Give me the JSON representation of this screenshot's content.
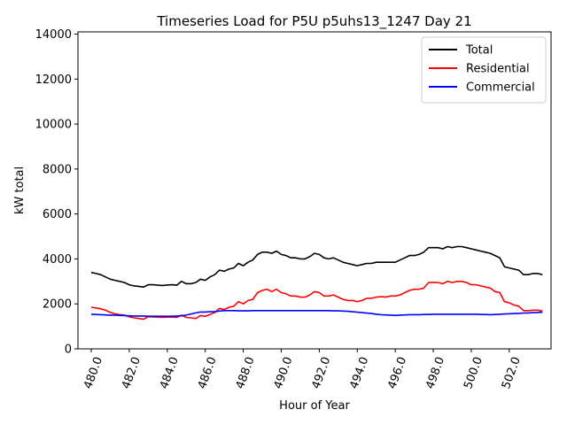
{
  "chart_data": {
    "type": "line",
    "title": "Timeseries Load for P5U p5uhs13_1247  Day 21",
    "xlabel": "Hour of Year",
    "ylabel": "kW total",
    "xlim": [
      479.3,
      504.2
    ],
    "ylim": [
      0,
      14100
    ],
    "x_ticks": [
      480,
      482,
      484,
      486,
      488,
      490,
      492,
      494,
      496,
      498,
      500,
      502
    ],
    "x_tick_labels": [
      "480.0",
      "482.0",
      "484.0",
      "486.0",
      "488.0",
      "490.0",
      "492.0",
      "494.0",
      "496.0",
      "498.0",
      "500.0",
      "502.0"
    ],
    "y_ticks": [
      0,
      2000,
      4000,
      6000,
      8000,
      10000,
      12000,
      14000
    ],
    "y_tick_labels": [
      "0",
      "2000",
      "4000",
      "6000",
      "8000",
      "10000",
      "12000",
      "14000"
    ],
    "legend_position": "top-right",
    "x": [
      480.0,
      480.25,
      480.5,
      480.75,
      481.0,
      481.25,
      481.5,
      481.75,
      482.0,
      482.25,
      482.5,
      482.75,
      483.0,
      483.25,
      483.5,
      483.75,
      484.0,
      484.25,
      484.5,
      484.75,
      485.0,
      485.25,
      485.5,
      485.75,
      486.0,
      486.25,
      486.5,
      486.75,
      487.0,
      487.25,
      487.5,
      487.75,
      488.0,
      488.25,
      488.5,
      488.75,
      489.0,
      489.25,
      489.5,
      489.75,
      490.0,
      490.25,
      490.5,
      490.75,
      491.0,
      491.25,
      491.5,
      491.75,
      492.0,
      492.25,
      492.5,
      492.75,
      493.0,
      493.25,
      493.5,
      493.75,
      494.0,
      494.25,
      494.5,
      494.75,
      495.0,
      495.25,
      495.5,
      495.75,
      496.0,
      496.25,
      496.5,
      496.75,
      497.0,
      497.25,
      497.5,
      497.75,
      498.0,
      498.25,
      498.5,
      498.75,
      499.0,
      499.25,
      499.5,
      499.75,
      500.0,
      500.25,
      500.5,
      500.75,
      501.0,
      501.25,
      501.5,
      501.75,
      502.0,
      502.25,
      502.5,
      502.75,
      503.0,
      503.25,
      503.5,
      503.75
    ],
    "series": [
      {
        "name": "Total",
        "color": "#000000",
        "values": [
          3400,
          3350,
          3300,
          3200,
          3100,
          3050,
          3000,
          2950,
          2850,
          2800,
          2780,
          2750,
          2850,
          2850,
          2830,
          2820,
          2840,
          2850,
          2830,
          3000,
          2900,
          2900,
          2950,
          3100,
          3050,
          3200,
          3300,
          3500,
          3450,
          3550,
          3600,
          3800,
          3700,
          3850,
          3950,
          4200,
          4300,
          4300,
          4250,
          4350,
          4200,
          4150,
          4050,
          4050,
          4000,
          4000,
          4100,
          4250,
          4200,
          4050,
          4000,
          4050,
          3950,
          3850,
          3800,
          3750,
          3700,
          3750,
          3800,
          3800,
          3850,
          3850,
          3850,
          3850,
          3850,
          3950,
          4050,
          4150,
          4150,
          4200,
          4300,
          4500,
          4500,
          4500,
          4450,
          4550,
          4500,
          4550,
          4550,
          4500,
          4450,
          4400,
          4350,
          4300,
          4250,
          4150,
          4050,
          3650,
          3600,
          3550,
          3500,
          3300,
          3300,
          3350,
          3350,
          3300
        ]
      },
      {
        "name": "Residential",
        "color": "#ff0000",
        "values": [
          1850,
          1820,
          1780,
          1720,
          1620,
          1560,
          1520,
          1500,
          1420,
          1380,
          1350,
          1320,
          1430,
          1420,
          1410,
          1400,
          1410,
          1410,
          1400,
          1500,
          1400,
          1380,
          1350,
          1480,
          1450,
          1530,
          1620,
          1800,
          1750,
          1850,
          1900,
          2100,
          2000,
          2150,
          2200,
          2500,
          2600,
          2650,
          2550,
          2650,
          2500,
          2450,
          2350,
          2350,
          2300,
          2300,
          2400,
          2550,
          2500,
          2350,
          2350,
          2400,
          2300,
          2200,
          2150,
          2150,
          2100,
          2150,
          2250,
          2250,
          2300,
          2320,
          2300,
          2350,
          2350,
          2400,
          2500,
          2600,
          2650,
          2650,
          2700,
          2950,
          2950,
          2950,
          2900,
          3000,
          2950,
          3000,
          3000,
          2950,
          2850,
          2850,
          2800,
          2750,
          2700,
          2550,
          2500,
          2100,
          2050,
          1950,
          1900,
          1700,
          1700,
          1720,
          1720,
          1680
        ]
      },
      {
        "name": "Commercial",
        "color": "#0000ff",
        "values": [
          1540,
          1530,
          1520,
          1510,
          1500,
          1500,
          1490,
          1480,
          1470,
          1460,
          1460,
          1460,
          1450,
          1450,
          1450,
          1450,
          1450,
          1450,
          1460,
          1470,
          1500,
          1550,
          1600,
          1640,
          1640,
          1650,
          1660,
          1680,
          1700,
          1700,
          1700,
          1690,
          1690,
          1690,
          1700,
          1700,
          1700,
          1700,
          1700,
          1700,
          1700,
          1700,
          1700,
          1700,
          1700,
          1700,
          1700,
          1700,
          1700,
          1700,
          1700,
          1690,
          1690,
          1680,
          1670,
          1650,
          1630,
          1610,
          1590,
          1570,
          1540,
          1520,
          1510,
          1500,
          1490,
          1500,
          1510,
          1520,
          1520,
          1520,
          1530,
          1530,
          1540,
          1540,
          1540,
          1540,
          1540,
          1540,
          1540,
          1540,
          1540,
          1540,
          1530,
          1530,
          1520,
          1530,
          1540,
          1550,
          1560,
          1570,
          1580,
          1590,
          1600,
          1610,
          1620,
          1630
        ]
      }
    ]
  }
}
